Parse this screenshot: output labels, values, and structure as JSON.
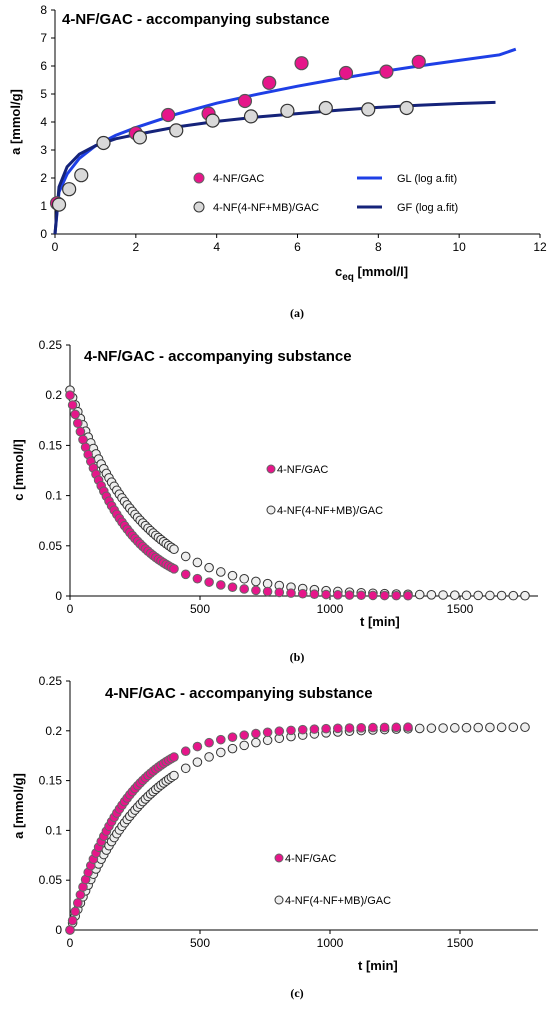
{
  "chart_data": [
    {
      "id": "a",
      "type": "scatter",
      "title": "4-NF/GAC - accompanying substance",
      "xlabel_main": "c",
      "xlabel_sub": "eq",
      "xlabel_rest": " [mmol/l]",
      "ylabel": "a [mmol/g]",
      "xlim": [
        0,
        12
      ],
      "ylim": [
        0,
        8
      ],
      "xticks": [
        "0",
        "2",
        "4",
        "6",
        "8",
        "10",
        "12"
      ],
      "yticks": [
        "0",
        "1",
        "2",
        "3",
        "4",
        "5",
        "6",
        "7",
        "8"
      ],
      "caption": "(a)",
      "series": [
        {
          "name": "4-NF/GAC",
          "kind": "points",
          "color": "#e6168a",
          "stroke": "#555555",
          "x": [
            0.05,
            2.0,
            2.8,
            3.8,
            4.7,
            5.3,
            6.1,
            7.2,
            8.2,
            9.0
          ],
          "y": [
            1.1,
            3.6,
            4.25,
            4.3,
            4.75,
            5.4,
            6.1,
            5.75,
            5.8,
            6.15
          ]
        },
        {
          "name": "4-NF(4-NF+MB)/GAC",
          "kind": "points",
          "color": "#d9d9d9",
          "stroke": "#333333",
          "x": [
            0.1,
            0.35,
            0.65,
            1.2,
            2.1,
            3.0,
            3.9,
            4.85,
            5.75,
            6.7,
            7.75,
            8.7
          ],
          "y": [
            1.05,
            1.6,
            2.1,
            3.25,
            3.45,
            3.7,
            4.05,
            4.2,
            4.4,
            4.5,
            4.45,
            4.5
          ]
        },
        {
          "name": "GL (log a.fit)",
          "kind": "line",
          "color": "#1e3fe6",
          "x": [
            0.0,
            0.1,
            0.3,
            0.6,
            1.0,
            1.5,
            2.0,
            3.0,
            4.0,
            5.0,
            6.0,
            7.0,
            8.0,
            9.0,
            10.0,
            11.0,
            11.4
          ],
          "y": [
            0.0,
            1.5,
            2.14,
            2.7,
            3.15,
            3.52,
            3.8,
            4.28,
            4.67,
            4.99,
            5.28,
            5.54,
            5.78,
            6.0,
            6.2,
            6.4,
            6.6
          ]
        },
        {
          "name": "GF (log a.fit)",
          "kind": "line",
          "color": "#15237a",
          "x": [
            0.0,
            0.1,
            0.3,
            0.6,
            1.0,
            1.5,
            2.0,
            3.0,
            4.0,
            5.0,
            6.0,
            7.0,
            8.0,
            9.0,
            10.0,
            10.9
          ],
          "y": [
            0.0,
            1.68,
            2.4,
            2.85,
            3.15,
            3.4,
            3.55,
            3.82,
            4.02,
            4.18,
            4.3,
            4.42,
            4.52,
            4.6,
            4.66,
            4.7
          ]
        }
      ],
      "legend": [
        {
          "label": "4-NF/GAC",
          "kind": "point",
          "color": "#e6168a"
        },
        {
          "label": "GL (log a.fit)",
          "kind": "line",
          "color": "#1e3fe6"
        },
        {
          "label": "4-NF(4-NF+MB)/GAC",
          "kind": "point",
          "color": "#d9d9d9"
        },
        {
          "label": "GF (log a.fit)",
          "kind": "line",
          "color": "#15237a"
        }
      ]
    },
    {
      "id": "b",
      "type": "scatter",
      "title": "4-NF/GAC - accompanying substance",
      "xlabel": "t [min]",
      "ylabel": "c [mmol/l]",
      "xlim": [
        0,
        1800
      ],
      "ylim": [
        0,
        0.25
      ],
      "xticks": [
        "0",
        "500",
        "1000",
        "1500"
      ],
      "yticks": [
        "0",
        "0.05",
        "0.1",
        "0.15",
        "0.2",
        "0.25"
      ],
      "caption": "(b)",
      "series": [
        {
          "name": "4-NF/GAC",
          "kind": "decay",
          "color": "#e6168a",
          "stroke": "#666666",
          "c0": 0.2,
          "tau": 200,
          "tmax": 1340
        },
        {
          "name": "4-NF(4-NF+MB)/GAC",
          "kind": "decay",
          "color": "#eeeeee",
          "stroke": "#333333",
          "c0": 0.205,
          "tau": 270,
          "tmax": 1770
        }
      ],
      "legend": [
        {
          "label": "4-NF/GAC",
          "kind": "point",
          "color": "#e6168a"
        },
        {
          "label": "4-NF(4-NF+MB)/GAC",
          "kind": "point",
          "color": "#eeeeee"
        }
      ]
    },
    {
      "id": "c",
      "type": "scatter",
      "title": "4-NF/GAC - accompanying substance",
      "xlabel": "t [min]",
      "ylabel": "a [mmol/g]",
      "xlim": [
        0,
        1800
      ],
      "ylim": [
        0,
        0.25
      ],
      "xticks": [
        "0",
        "500",
        "1000",
        "1500"
      ],
      "yticks": [
        "0",
        "0.05",
        "0.1",
        "0.15",
        "0.2",
        "0.25"
      ],
      "caption": "(c)",
      "series": [
        {
          "name": "4-NF/GAC",
          "kind": "growth",
          "color": "#e6168a",
          "stroke": "#666666",
          "amax": 0.204,
          "tau": 210,
          "tmax": 1330
        },
        {
          "name": "4-NF(4-NF+MB)/GAC",
          "kind": "growth",
          "color": "#eeeeee",
          "stroke": "#333333",
          "amax": 0.204,
          "tau": 280,
          "tmax": 1760
        }
      ],
      "legend": [
        {
          "label": "4-NF/GAC",
          "kind": "point",
          "color": "#e6168a"
        },
        {
          "label": "4-NF(4-NF+MB)/GAC",
          "kind": "point",
          "color": "#eeeeee"
        }
      ]
    }
  ]
}
